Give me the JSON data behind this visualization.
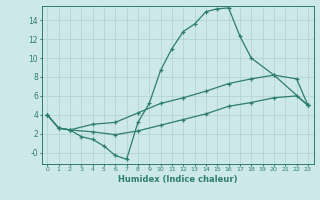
{
  "xlabel": "Humidex (Indice chaleur)",
  "bg_color": "#cce8e8",
  "line_color": "#2e7d6e",
  "xlim": [
    -0.5,
    23.5
  ],
  "ylim": [
    -1.2,
    15.5
  ],
  "yticks": [
    0,
    2,
    4,
    6,
    8,
    10,
    12,
    14
  ],
  "ytick_labels": [
    "-0",
    "2",
    "4",
    "6",
    "8",
    "10",
    "12",
    "14"
  ],
  "xticks": [
    0,
    1,
    2,
    3,
    4,
    5,
    6,
    7,
    8,
    9,
    10,
    11,
    12,
    13,
    14,
    15,
    16,
    17,
    18,
    19,
    20,
    21,
    22,
    23
  ],
  "curve1_x": [
    0,
    1,
    2,
    3,
    4,
    5,
    6,
    7,
    8,
    9,
    10,
    11,
    12,
    13,
    14,
    15,
    16,
    17,
    18,
    20,
    23
  ],
  "curve1_y": [
    4.0,
    2.6,
    2.4,
    1.7,
    1.4,
    0.7,
    -0.3,
    -0.7,
    3.2,
    5.2,
    8.7,
    11.0,
    12.8,
    13.6,
    14.9,
    15.2,
    15.3,
    12.3,
    10.0,
    8.2,
    5.0
  ],
  "curve2_x": [
    0,
    1,
    2,
    4,
    6,
    8,
    10,
    12,
    14,
    16,
    18,
    20,
    22,
    23
  ],
  "curve2_y": [
    4.0,
    2.6,
    2.4,
    3.0,
    3.2,
    4.2,
    5.2,
    5.8,
    6.5,
    7.3,
    7.8,
    8.2,
    7.8,
    5.0
  ],
  "curve3_x": [
    0,
    1,
    2,
    4,
    6,
    8,
    10,
    12,
    14,
    16,
    18,
    20,
    22,
    23
  ],
  "curve3_y": [
    4.0,
    2.6,
    2.4,
    2.2,
    1.9,
    2.3,
    2.9,
    3.5,
    4.1,
    4.9,
    5.3,
    5.8,
    6.0,
    5.0
  ]
}
